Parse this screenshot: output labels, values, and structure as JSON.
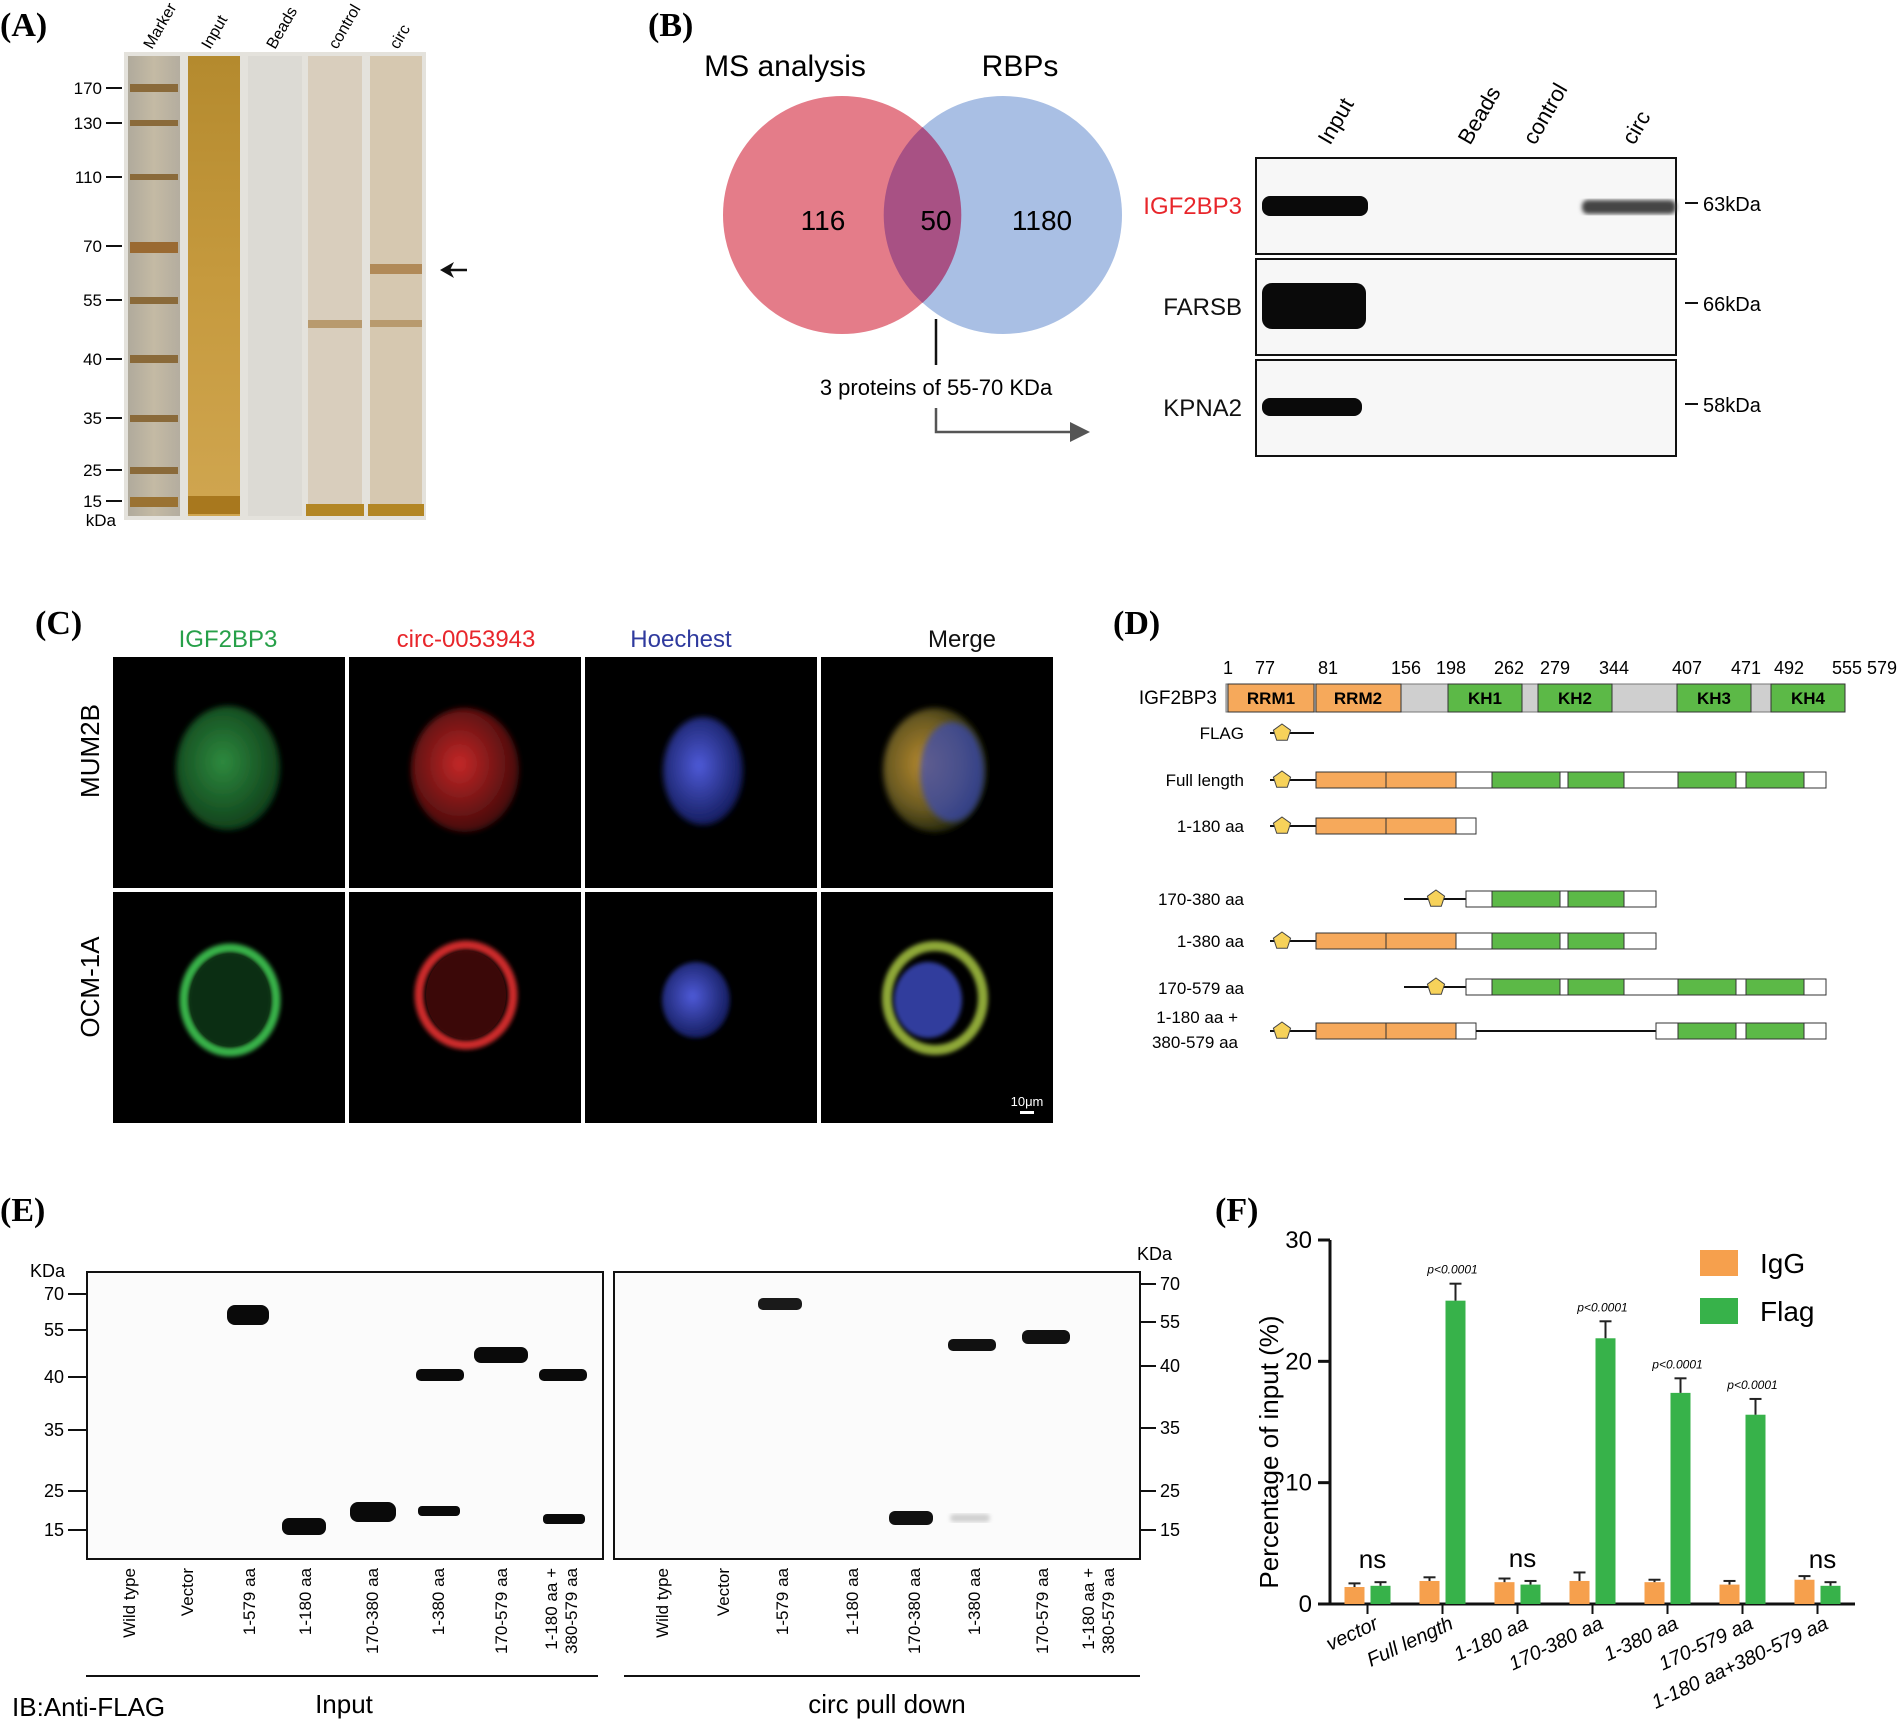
{
  "panel_labels": [
    "(A)",
    "(B)",
    "(C)",
    "(D)",
    "(E)",
    "(F)"
  ],
  "panelA": {
    "lanes": [
      "Marker",
      "Input",
      "Beads",
      "control",
      "circ"
    ],
    "markers": [
      "170",
      "130",
      "110",
      "70",
      "55",
      "40",
      "35",
      "25",
      "15"
    ],
    "unit": "kDa"
  },
  "panelB": {
    "venn": {
      "left_title": "MS analysis",
      "right_title": "RBPs",
      "left_only": "116",
      "overlap": "50",
      "right_only": "1180"
    },
    "note": "3 proteins of 55-70 KDa",
    "wb_lanes": [
      "Input",
      "Beads",
      "control",
      "circ"
    ],
    "proteins": [
      {
        "name": "IGF2BP3",
        "size": "63kDa",
        "color": "#e8262b"
      },
      {
        "name": "FARSB",
        "size": "66kDa",
        "color": "#111111"
      },
      {
        "name": "KPNA2",
        "size": "58kDa",
        "color": "#111111"
      }
    ]
  },
  "panelC": {
    "columns": [
      {
        "label": "IGF2BP3",
        "color": "#27a049"
      },
      {
        "label": "circ-0053943",
        "color": "#e8262b"
      },
      {
        "label": "Hoechest",
        "color": "#2f3a9e"
      },
      {
        "label": "Merge",
        "color": "#111111"
      }
    ],
    "rows": [
      "MUM2B",
      "OCM-1A"
    ],
    "scale_bar": "10μm"
  },
  "panelD": {
    "protein": "IGF2BP3",
    "positions": [
      "1",
      "77",
      "81",
      "156",
      "198",
      "262",
      "279",
      "344",
      "407",
      "471",
      "492",
      "555",
      "579"
    ],
    "domains": [
      "RRM1",
      "RRM2",
      "KH1",
      "KH2",
      "KH3",
      "KH4"
    ],
    "constructs": [
      "FLAG",
      "Full length",
      "1-180 aa",
      "170-380 aa",
      "1-380 aa",
      "170-579 aa",
      "1-180 aa +",
      "380-579 aa"
    ],
    "colors": {
      "rrm": "#f6a95b",
      "kh": "#5cb947",
      "flag": "#f7d25a"
    }
  },
  "panelE": {
    "unit": "KDa",
    "markers": [
      "70",
      "55",
      "40",
      "35",
      "25",
      "15"
    ],
    "lanes": [
      "Wild type",
      "Vector",
      "1-579 aa",
      "1-180 aa",
      "170-380 aa",
      "1-380 aa",
      "170-579 aa",
      "1-180 aa +",
      "380-579 aa"
    ],
    "ib_label": "IB:Anti-FLAG",
    "left_group": "Input",
    "right_group": "circ pull down"
  },
  "chart_data": {
    "type": "bar",
    "categories": [
      "vector",
      "Full length",
      "1-180 aa",
      "170-380 aa",
      "1-380 aa",
      "170-579 aa",
      "1-180 aa+380-579 aa"
    ],
    "series": [
      {
        "name": "IgG",
        "values": [
          1.4,
          1.9,
          1.8,
          1.9,
          1.8,
          1.6,
          2.0
        ],
        "errors": [
          0.3,
          0.3,
          0.3,
          0.7,
          0.2,
          0.3,
          0.3
        ],
        "color": "#f6a04d"
      },
      {
        "name": "Flag",
        "values": [
          1.5,
          25.0,
          1.6,
          21.9,
          17.4,
          15.6,
          1.5
        ],
        "errors": [
          0.3,
          1.4,
          0.3,
          1.4,
          1.2,
          1.3,
          0.3
        ],
        "color": "#37b24a"
      }
    ],
    "annotations": [
      "ns",
      "p<0.0001",
      "ns",
      "p<0.0001",
      "p<0.0001",
      "p<0.0001",
      "ns"
    ],
    "ylabel": "Percentage of input (%)",
    "yticks": [
      "0",
      "10",
      "20",
      "30"
    ],
    "ylim": [
      0,
      30
    ],
    "legend": "top-right"
  }
}
